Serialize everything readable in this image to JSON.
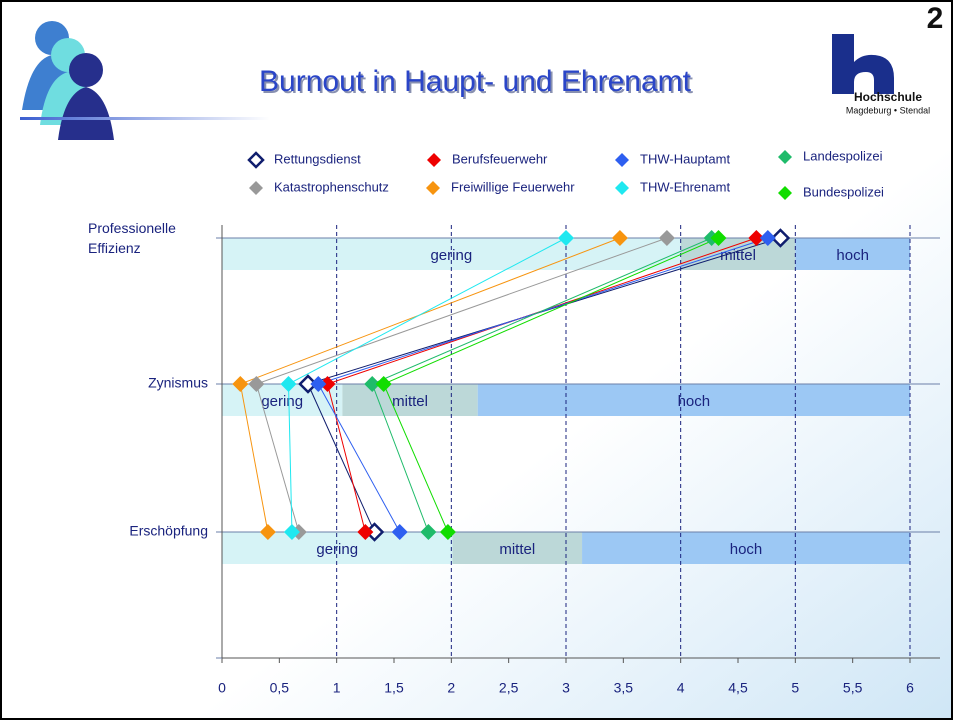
{
  "slide": {
    "logo_texts": [
      "2",
      "Hochschule",
      "Magdeburg • Stendal"
    ]
  },
  "chart_data": {
    "type": "line",
    "title": "Burnout in Haupt- und Ehrenamt",
    "categories": [
      "Professionelle Effizienz",
      "Zynismus",
      "Erschöpfung",
      null
    ],
    "xlim": [
      0,
      6
    ],
    "xticks": [
      0,
      {
        "value": 0.5,
        "label": "0,5"
      },
      1,
      {
        "value": 1.5,
        "label": "1,5"
      },
      2,
      {
        "value": 2.5,
        "label": "2,5"
      },
      3,
      {
        "value": 3.5,
        "label": "3,5"
      },
      4,
      {
        "value": 4.5,
        "label": "4,5"
      },
      5,
      {
        "value": 5.5,
        "label": "5,5"
      },
      6
    ],
    "grid": true,
    "bands": {
      "labels": [
        "gering",
        "mittel",
        "hoch"
      ],
      "colors": [
        "#d6f3f6",
        "#bcd8d8",
        "#9cc8f4"
      ],
      "bounds": [
        [
          0,
          4,
          5,
          6
        ],
        [
          0,
          1.05,
          2.23,
          6
        ],
        [
          0,
          2.01,
          3.14,
          6
        ],
        null
      ]
    },
    "series": [
      {
        "name": "Rettungsdienst",
        "color": "#101e6e",
        "hollow": true,
        "values": [
          4.87,
          0.75,
          1.33,
          null
        ]
      },
      {
        "name": "Berufsfeuerwehr",
        "color": "#ee0000",
        "values": [
          4.66,
          0.92,
          1.25,
          null
        ]
      },
      {
        "name": "THW-Hauptamt",
        "color": "#2e5ff0",
        "values": [
          4.76,
          0.84,
          1.55,
          null
        ]
      },
      {
        "name": "Landespolizei",
        "color": "#1fbb6a",
        "values": [
          4.27,
          1.31,
          1.8,
          null
        ]
      },
      {
        "name": "Katastrophenschutz",
        "color": "#999999",
        "values": [
          3.88,
          0.3,
          0.67,
          null
        ]
      },
      {
        "name": "Freiwillige Feuerwehr",
        "color": "#f7940f",
        "values": [
          3.47,
          0.16,
          0.4,
          null
        ]
      },
      {
        "name": "THW-Ehrenamt",
        "color": "#1fe8f0",
        "values": [
          3.0,
          0.58,
          0.61,
          null
        ]
      },
      {
        "name": "Bundespolizei",
        "color": "#11dd00",
        "values": [
          4.33,
          1.41,
          1.97,
          null
        ]
      }
    ]
  }
}
